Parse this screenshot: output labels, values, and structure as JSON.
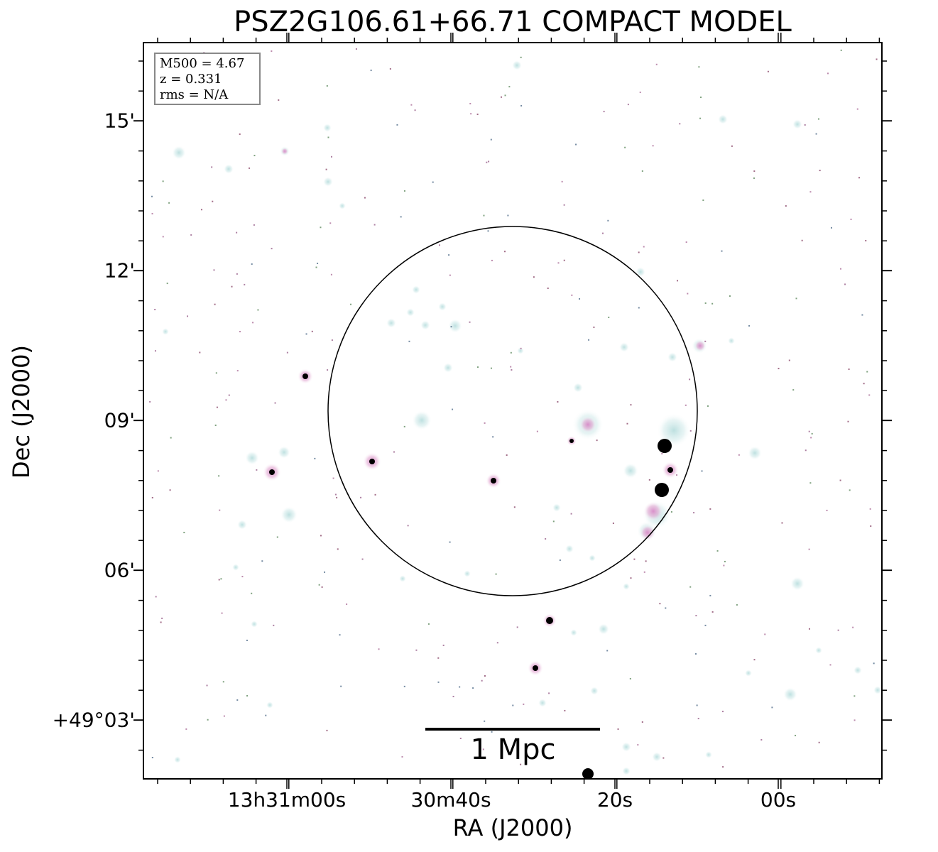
{
  "title": "PSZ2G106.61+66.71 COMPACT MODEL",
  "xlabel": "RA (J2000)",
  "ylabel": "Dec (J2000)",
  "y_ticks": [
    "15'",
    "12'",
    "09'",
    "06'",
    "+49°03'"
  ],
  "x_ticks": [
    "13h31m00s",
    "30m40s",
    "20s",
    "00s"
  ],
  "info": {
    "mass": "M500 = 4.67",
    "redshift": "z = 0.331",
    "rms": "rms = N/A"
  },
  "scale_bar": {
    "label": "1 Mpc"
  },
  "colors": {
    "frame": "#000000",
    "glow": "#d6ecec",
    "pink": "#e7a6d4",
    "dark": "#000000"
  }
}
